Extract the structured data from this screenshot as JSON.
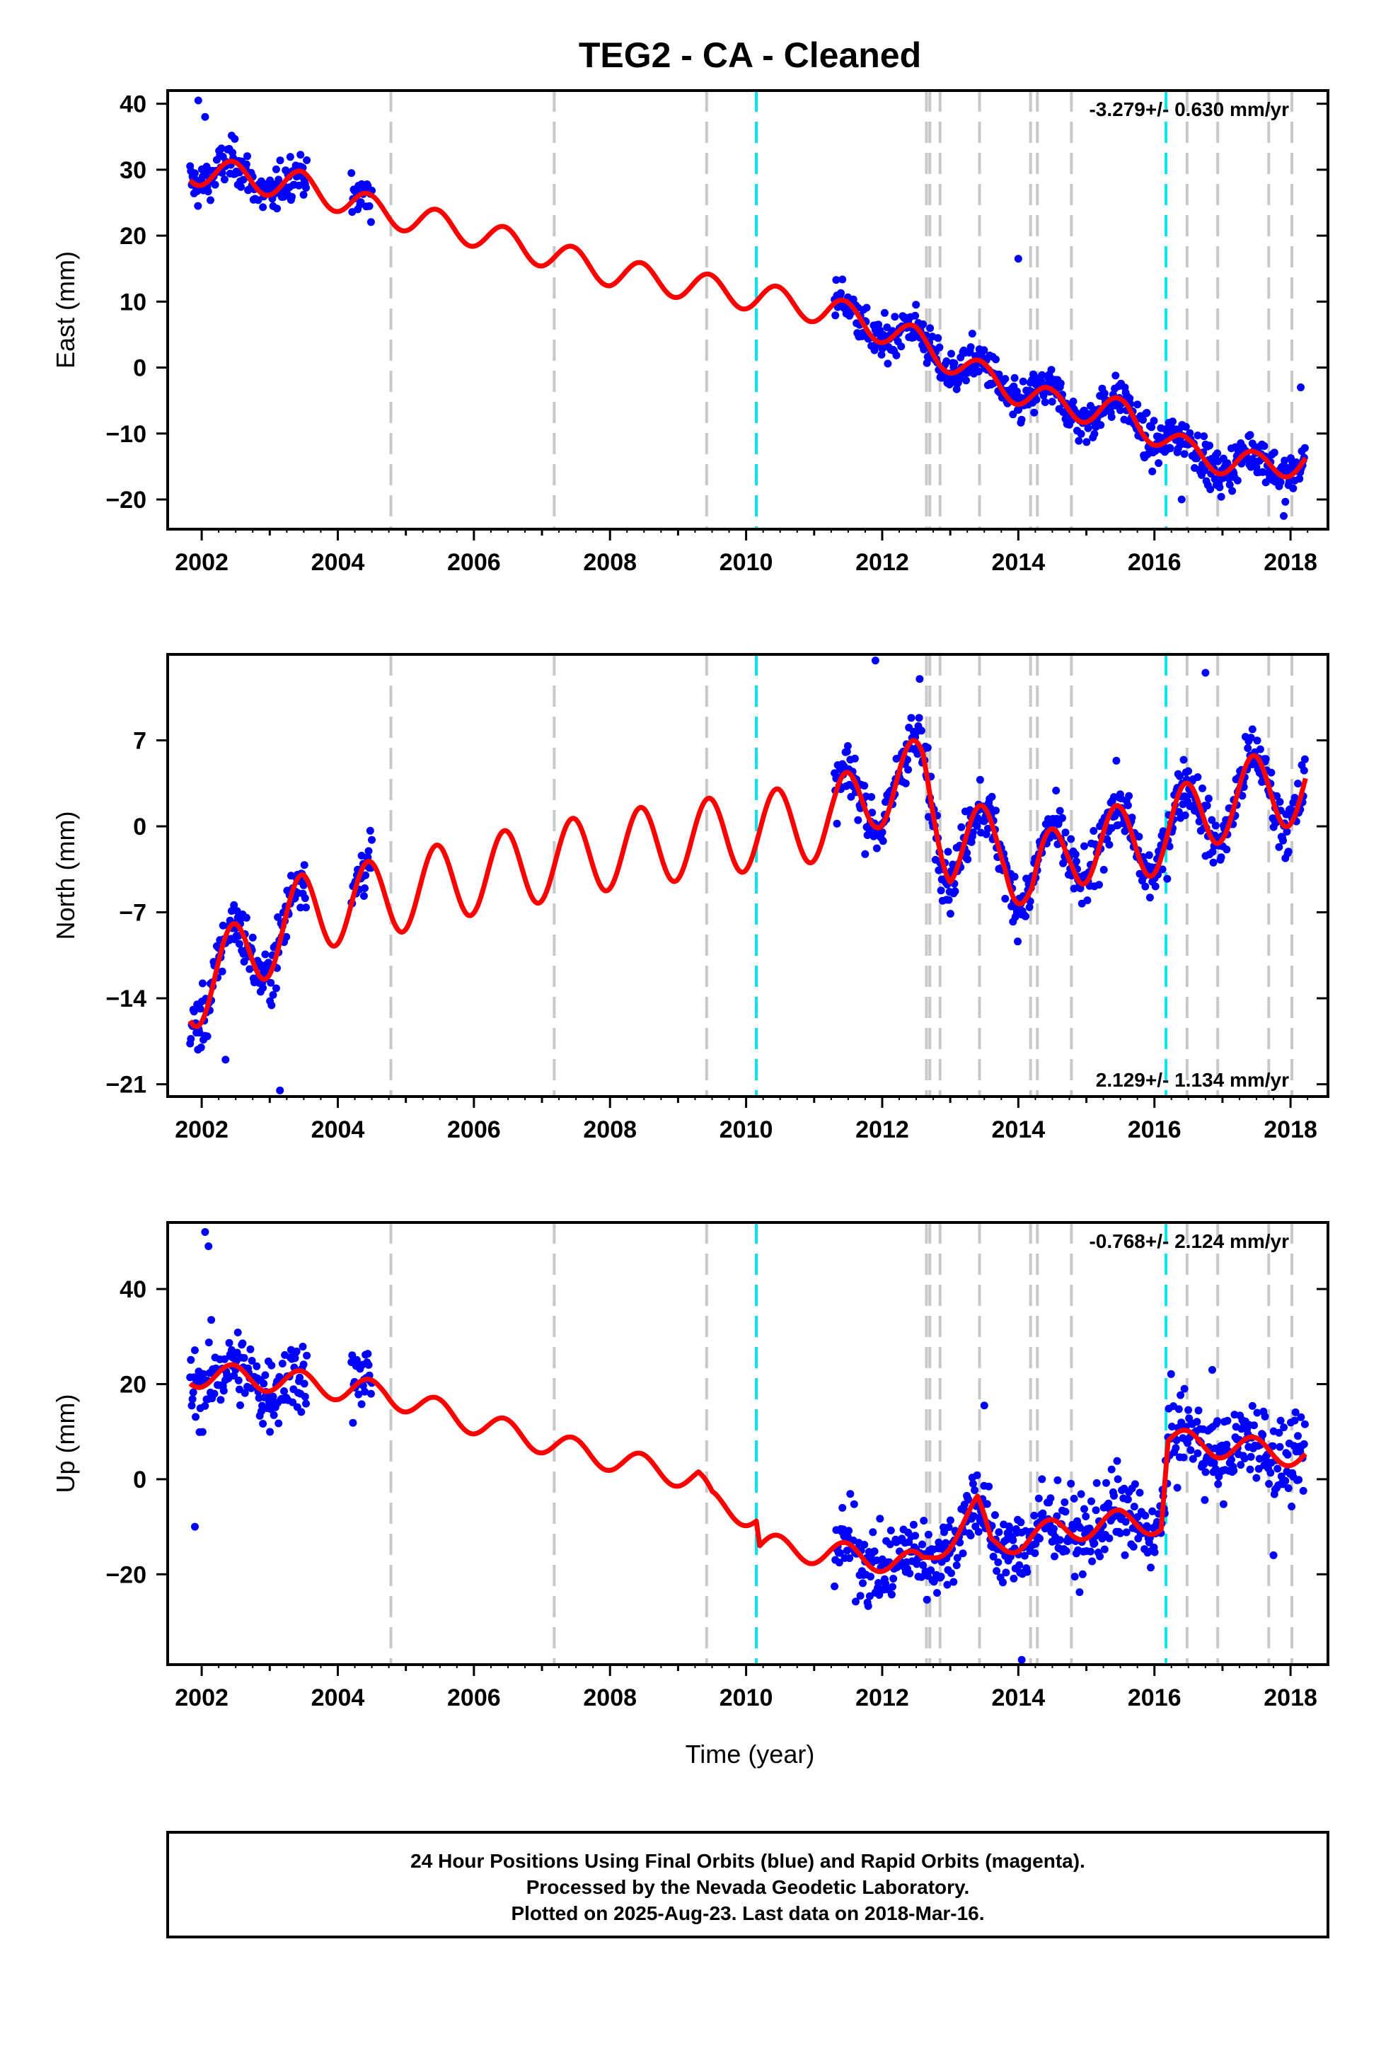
{
  "title": "TEG2  - CA - Cleaned",
  "xlabel": "Time (year)",
  "footer": {
    "line1": "24 Hour Positions Using Final Orbits (blue) and Rapid Orbits (magenta).",
    "line2": "Processed by the Nevada Geodetic Laboratory.",
    "line3": "Plotted on 2025-Aug-23. Last data on 2018-Mar-16."
  },
  "colors": {
    "data": "#0000ff",
    "model": "#ff0000",
    "equipment_change": "#c8c8c8",
    "earthquake": "#00e5ee"
  },
  "chart_data": {
    "type": "scatter",
    "x_range": [
      2001.5,
      2018.55
    ],
    "x_ticks": [
      2002,
      2004,
      2006,
      2008,
      2010,
      2012,
      2014,
      2016,
      2018
    ],
    "gray_steps": [
      2004.78,
      2007.18,
      2009.42,
      2012.65,
      2012.7,
      2012.85,
      2013.43,
      2014.18,
      2014.28,
      2014.78,
      2016.48,
      2016.93,
      2017.68,
      2018.02
    ],
    "cyan_steps": [
      2010.15,
      2016.17
    ],
    "panels": [
      {
        "name": "east",
        "ylabel": "East (mm)",
        "ylim": [
          -24.5,
          42
        ],
        "y_ticks": [
          40,
          30,
          20,
          10,
          0,
          -10,
          -20
        ],
        "rate": "-3.279+/- 0.630 mm/yr",
        "rate_pos": "top-right",
        "mean_path": [
          [
            2001.83,
            30
          ],
          [
            2003.5,
            27.5
          ],
          [
            2004.5,
            24
          ],
          [
            2006,
            20.5
          ],
          [
            2008,
            14.5
          ],
          [
            2010,
            11
          ],
          [
            2011.3,
            8.5
          ],
          [
            2012.5,
            4
          ],
          [
            2013.5,
            -1.5
          ],
          [
            2014.5,
            -5.5
          ],
          [
            2015.6,
            -7
          ],
          [
            2016.5,
            -13
          ],
          [
            2017.5,
            -15
          ],
          [
            2018.22,
            -14
          ]
        ],
        "seasonal_amp": 2.2,
        "steps": [],
        "noise": 2.5,
        "spikes": [
          [
            2001.95,
            40.5
          ],
          [
            2002.05,
            38
          ],
          [
            2014,
            16.5
          ],
          [
            2016.4,
            -20
          ],
          [
            2017.9,
            -22.5
          ],
          [
            2018.15,
            -3
          ]
        ]
      },
      {
        "name": "north",
        "ylabel": "North (mm)",
        "ylim": [
          -22,
          14
        ],
        "y_ticks": [
          7,
          0,
          -7,
          -14,
          -21
        ],
        "rate": "2.129+/- 1.134 mm/yr",
        "rate_pos": "bottom-right",
        "mean_path": [
          [
            2001.83,
            -13.5
          ],
          [
            2002.5,
            -11
          ],
          [
            2003.5,
            -7
          ],
          [
            2004.5,
            -6
          ],
          [
            2006,
            -4
          ],
          [
            2008,
            -2
          ],
          [
            2010,
            -0.5
          ],
          [
            2011.3,
            0.5
          ],
          [
            2011.9,
            3
          ],
          [
            2012.6,
            4
          ],
          [
            2013,
            -1.5
          ],
          [
            2013.8,
            -1.5
          ],
          [
            2014.2,
            -5
          ],
          [
            2014.8,
            -1.5
          ],
          [
            2015.5,
            -1.5
          ],
          [
            2016.2,
            -0.5
          ],
          [
            2017,
            2
          ],
          [
            2018.22,
            3.5
          ]
        ],
        "seasonal_amp": 3.2,
        "steps": [],
        "noise": 1.8,
        "spikes": [
          [
            2003.15,
            -21.5
          ],
          [
            2011.9,
            13.5
          ],
          [
            2012.55,
            12
          ],
          [
            2016.75,
            12.5
          ],
          [
            2002.35,
            -19
          ]
        ]
      },
      {
        "name": "up",
        "ylabel": "Up (mm)",
        "ylim": [
          -39,
          54
        ],
        "y_ticks": [
          40,
          20,
          0,
          -20
        ],
        "rate": "-0.768+/- 2.124 mm/yr",
        "rate_pos": "top-right",
        "mean_path": [
          [
            2001.83,
            22
          ],
          [
            2003,
            21
          ],
          [
            2004.7,
            18
          ],
          [
            2006,
            12
          ],
          [
            2007.5,
            6
          ],
          [
            2009.3,
            0
          ],
          [
            2009.5,
            -5
          ],
          [
            2010.15,
            -8
          ],
          [
            2010.2,
            -14
          ],
          [
            2011.5,
            -16
          ],
          [
            2012.6,
            -18
          ],
          [
            2013.4,
            -6
          ],
          [
            2013.6,
            -14
          ],
          [
            2014.5,
            -11
          ],
          [
            2015.5,
            -9
          ],
          [
            2016.1,
            -9
          ],
          [
            2016.2,
            8
          ],
          [
            2017,
            7
          ],
          [
            2018.22,
            5
          ]
        ],
        "seasonal_amp": 2.6,
        "steps": [],
        "noise": 6.5,
        "spikes": [
          [
            2002.05,
            52
          ],
          [
            2001.9,
            -10
          ],
          [
            2013.5,
            15.5
          ],
          [
            2014.05,
            -38
          ],
          [
            2016.85,
            23
          ],
          [
            2017.75,
            -16
          ],
          [
            2002.1,
            49
          ]
        ]
      }
    ],
    "data_intervals": [
      [
        2001.83,
        2003.55
      ],
      [
        2004.2,
        2004.5
      ],
      [
        2011.3,
        2018.22
      ]
    ]
  }
}
